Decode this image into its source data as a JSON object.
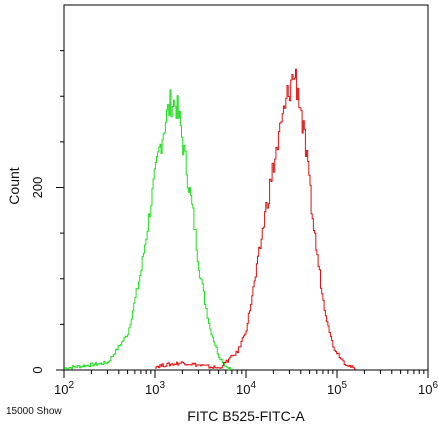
{
  "chart_data": {
    "type": "line",
    "title": "",
    "xlabel": "FITC B525-FITC-A",
    "ylabel": "Count",
    "x_scale": "log",
    "xlim": [
      100,
      1000000
    ],
    "ylim": [
      0,
      400
    ],
    "x_tick_labels": [
      {
        "base": "10",
        "exp": "2",
        "value": 100
      },
      {
        "base": "10",
        "exp": "3",
        "value": 1000
      },
      {
        "base": "10",
        "exp": "4",
        "value": 10000
      },
      {
        "base": "10",
        "exp": "5",
        "value": 100000
      },
      {
        "base": "10",
        "exp": "6",
        "value": 1000000
      }
    ],
    "y_ticks": [
      {
        "label": "0",
        "value": 0
      },
      {
        "label": "200",
        "value": 200
      }
    ],
    "y_minor_step": 50,
    "grid": false,
    "series": [
      {
        "color": "#22dd22",
        "x": [
          100,
          300,
          500,
          700,
          900,
          1100,
          1300,
          1500,
          1700,
          1900,
          2200,
          2600,
          3000,
          3500,
          4000,
          5000,
          6000,
          7000
        ],
        "y": [
          2,
          8,
          40,
          110,
          185,
          240,
          275,
          295,
          290,
          265,
          220,
          170,
          115,
          75,
          45,
          15,
          4,
          0
        ]
      },
      {
        "color": "#dd1111",
        "x": [
          1000,
          2000,
          5000,
          8000,
          10000,
          13000,
          16000,
          20000,
          25000,
          30000,
          34000,
          38000,
          45000,
          55000,
          70000,
          90000,
          120000,
          160000
        ],
        "y": [
          4,
          8,
          2,
          20,
          45,
          110,
          170,
          225,
          275,
          310,
          325,
          300,
          240,
          155,
          75,
          25,
          8,
          0
        ]
      }
    ]
  },
  "footer_note": "15000 Show"
}
